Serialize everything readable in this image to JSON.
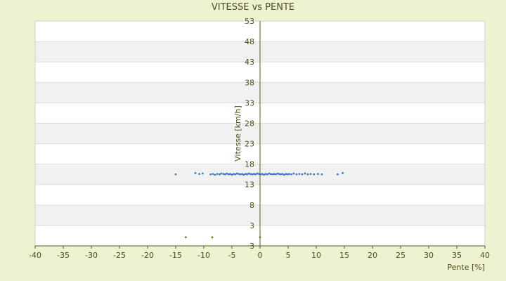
{
  "chart_data": {
    "type": "scatter",
    "title": "VITESSE vs PENTE",
    "xlabel": "Pente [%]",
    "ylabel": "Vitesse [km/h]",
    "xlim": [
      -40,
      40
    ],
    "x_ticks": [
      -40,
      -35,
      -30,
      -25,
      -20,
      -15,
      -10,
      -5,
      0,
      5,
      10,
      15,
      20,
      25,
      30,
      35,
      40
    ],
    "y_tick_labels": [
      "53",
      "48",
      "43",
      "38",
      "33",
      "28",
      "23",
      "18",
      "13",
      "8",
      "3",
      "3"
    ],
    "grid": true,
    "legend": "none",
    "colors": {
      "background": "#eef2d0",
      "plot": "#ffffff",
      "band": "#f1f1f1",
      "axis": "#5a5a1e",
      "text": "#4d4d1a",
      "points_main": "#3a78c4",
      "points_outlier": "#8a6a10"
    },
    "series": [
      {
        "color": "#3a78c4",
        "points": [
          [
            -15.0,
            15.5
          ],
          [
            -11.5,
            15.8
          ],
          [
            -10.8,
            15.6
          ],
          [
            -10.2,
            15.7
          ],
          [
            -8.8,
            15.5
          ],
          [
            -8.4,
            15.6
          ],
          [
            -8.0,
            15.4
          ],
          [
            -7.6,
            15.6
          ],
          [
            -7.2,
            15.5
          ],
          [
            -6.9,
            15.7
          ],
          [
            -6.5,
            15.6
          ],
          [
            -6.2,
            15.5
          ],
          [
            -5.9,
            15.7
          ],
          [
            -5.6,
            15.5
          ],
          [
            -5.3,
            15.6
          ],
          [
            -5.0,
            15.4
          ],
          [
            -4.7,
            15.6
          ],
          [
            -4.4,
            15.5
          ],
          [
            -4.1,
            15.7
          ],
          [
            -3.8,
            15.6
          ],
          [
            -3.5,
            15.5
          ],
          [
            -3.2,
            15.6
          ],
          [
            -2.9,
            15.4
          ],
          [
            -2.6,
            15.6
          ],
          [
            -2.3,
            15.5
          ],
          [
            -2.0,
            15.7
          ],
          [
            -1.7,
            15.6
          ],
          [
            -1.4,
            15.5
          ],
          [
            -1.1,
            15.6
          ],
          [
            -0.8,
            15.5
          ],
          [
            -0.5,
            15.7
          ],
          [
            -0.2,
            15.6
          ],
          [
            0.1,
            15.5
          ],
          [
            0.4,
            15.6
          ],
          [
            0.7,
            15.4
          ],
          [
            1.0,
            15.6
          ],
          [
            1.3,
            15.5
          ],
          [
            1.6,
            15.7
          ],
          [
            1.9,
            15.6
          ],
          [
            2.2,
            15.5
          ],
          [
            2.5,
            15.6
          ],
          [
            2.8,
            15.5
          ],
          [
            3.1,
            15.7
          ],
          [
            3.4,
            15.6
          ],
          [
            3.7,
            15.5
          ],
          [
            4.0,
            15.6
          ],
          [
            4.3,
            15.4
          ],
          [
            4.6,
            15.6
          ],
          [
            4.9,
            15.5
          ],
          [
            5.2,
            15.6
          ],
          [
            5.6,
            15.5
          ],
          [
            6.0,
            15.7
          ],
          [
            6.5,
            15.5
          ],
          [
            7.0,
            15.6
          ],
          [
            7.5,
            15.5
          ],
          [
            8.0,
            15.7
          ],
          [
            8.5,
            15.5
          ],
          [
            9.0,
            15.6
          ],
          [
            9.6,
            15.5
          ],
          [
            10.3,
            15.6
          ],
          [
            11.0,
            15.5
          ],
          [
            13.8,
            15.5
          ],
          [
            14.7,
            15.8
          ]
        ]
      },
      {
        "color": "#8a6a10",
        "points": [
          [
            -13.2,
            0.9
          ],
          [
            -8.5,
            0.9
          ],
          [
            0.0,
            0.9
          ]
        ]
      }
    ]
  }
}
